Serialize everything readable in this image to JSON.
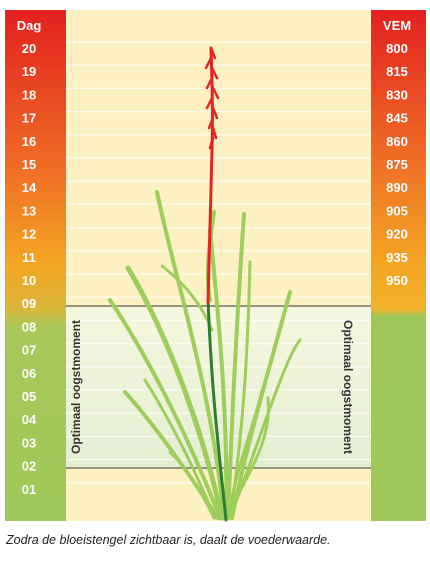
{
  "left_scale": {
    "header": "Dag",
    "labels": [
      "20",
      "19",
      "18",
      "17",
      "16",
      "15",
      "14",
      "13",
      "12",
      "11",
      "10",
      "09",
      "08",
      "07",
      "06",
      "05",
      "04",
      "03",
      "02",
      "01"
    ]
  },
  "right_scale": {
    "header": "VEM",
    "labels": [
      "800",
      "815",
      "830",
      "845",
      "860",
      "875",
      "890",
      "905",
      "920",
      "935",
      "950"
    ]
  },
  "annotations": {
    "left_vertical": "Optimaal oogstmoment",
    "right_vertical": "Optimaal oogstmoment"
  },
  "caption": "Zodra de bloeistengel zichtbaar is, daalt de voederwaarde.",
  "colors": {
    "stem_red": "#e52421",
    "leaf_green": "#9dcd5a",
    "stem_dark_green": "#2e7d32",
    "gradient_top": "#e3201f",
    "gradient_mid": "#f4a623",
    "gradient_bottom": "#9ec95a",
    "cream_bg": "#fdf1c4",
    "optimal_band": "#eef4dc"
  }
}
